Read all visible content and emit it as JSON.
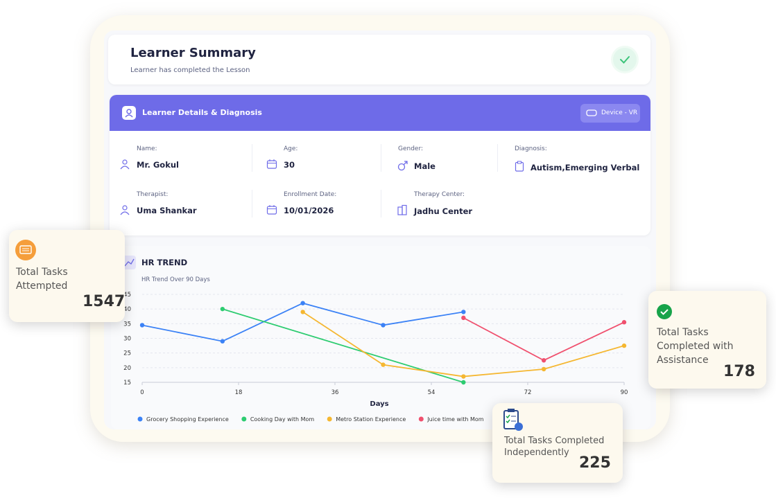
{
  "header": {
    "title": "Learner Summary",
    "subtitle": "Learner has completed the Lesson"
  },
  "details": {
    "title": "Learner Details & Diagnosis",
    "device": "Device - VR",
    "fields": [
      {
        "label": "Name:",
        "value": "Mr. Gokul"
      },
      {
        "label": "Age:",
        "value": "30"
      },
      {
        "label": "Gender:",
        "value": "Male"
      },
      {
        "label": "Diagnosis:",
        "value": "Autism,Emerging Verbal"
      },
      {
        "label": "Therapist:",
        "value": "Uma Shankar"
      },
      {
        "label": "Enrollment Date:",
        "value": "10/01/2026"
      },
      {
        "label": "Therapy Center:",
        "value": "Jadhu Center"
      }
    ]
  },
  "stats": [
    {
      "label": "Total Tasks Attempted",
      "value": "1547"
    },
    {
      "label": "Total Tasks Completed with Assistance",
      "value": "178"
    },
    {
      "label": "Total Tasks Completed Independently",
      "value": "225"
    }
  ],
  "chart_data": {
    "type": "line",
    "title": "HR TREND",
    "subtitle": "HR Trend Over 90 Days",
    "x_label": "Days",
    "xlim": [
      0,
      90
    ],
    "xticks": [
      0,
      18,
      36,
      54,
      72,
      90
    ],
    "ylim": [
      15,
      45
    ],
    "yticks": [
      15,
      20,
      25,
      30,
      35,
      40,
      45
    ],
    "grid": true,
    "legend": "bottom",
    "series": [
      {
        "name": "Grocery Shopping Experience",
        "color": "#3b82f6",
        "x": [
          0,
          15,
          30,
          45,
          60
        ],
        "values": [
          34.5,
          29,
          42,
          34.5,
          39
        ]
      },
      {
        "name": "Cooking Day with Mom",
        "color": "#2ecc71",
        "x": [
          15,
          60
        ],
        "values": [
          40,
          15
        ]
      },
      {
        "name": "Metro Station Experience",
        "color": "#f5b731",
        "x": [
          30,
          45,
          60,
          75,
          90
        ],
        "values": [
          39,
          21,
          17,
          19.5,
          27.5
        ]
      },
      {
        "name": "Juice time with Mom",
        "color": "#f0506e",
        "x": [
          60,
          75,
          90
        ],
        "values": [
          37,
          22.5,
          35.5
        ]
      }
    ]
  }
}
